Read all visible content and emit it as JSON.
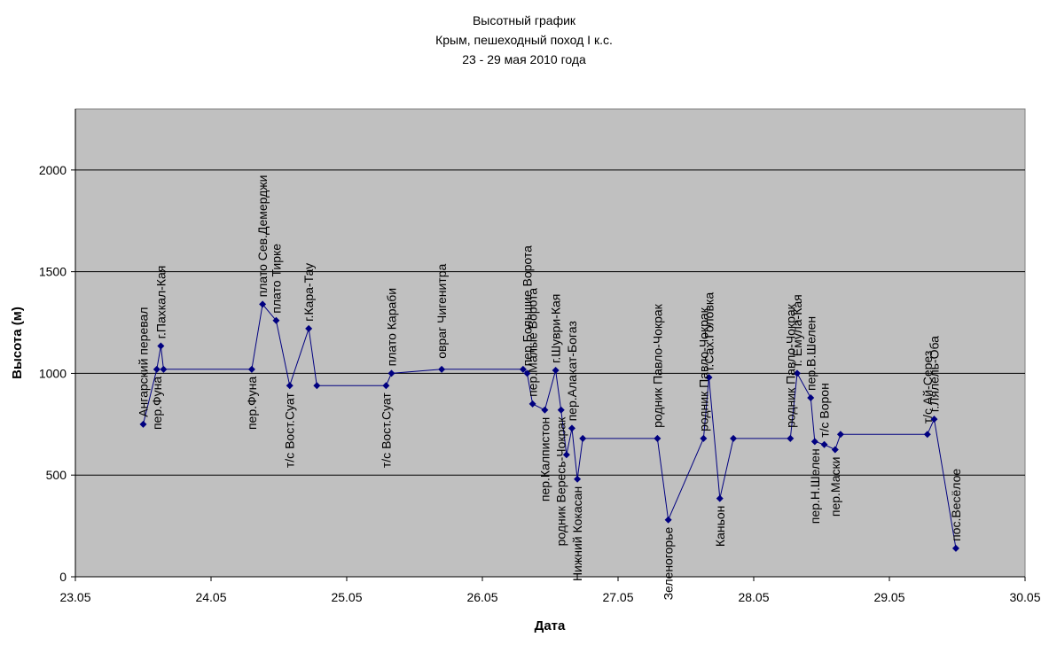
{
  "chart_data": {
    "type": "line",
    "title": [
      "Высотный график",
      "Крым, пешеходный поход I к.с.",
      "23 - 29 мая 2010 года"
    ],
    "xlabel": "Дата",
    "ylabel": "Высота (м)",
    "xlim": [
      23.0,
      30.0
    ],
    "ylim": [
      0,
      2300
    ],
    "x_ticks": [
      "23.05",
      "24.05",
      "25.05",
      "26.05",
      "27.05",
      "28.05",
      "29.05",
      "30.05"
    ],
    "y_ticks": [
      "0",
      "500",
      "1000",
      "1500",
      "2000"
    ],
    "grid": "horizontal",
    "colors": {
      "plot_bg": "#c0c0c0",
      "line": "#000080",
      "grid": "#000000"
    },
    "points": [
      {
        "x": 23.5,
        "y": 750,
        "label": "Ангарский перевал",
        "pos": "above"
      },
      {
        "x": 23.6,
        "y": 1020,
        "label": "пер.Фуна",
        "pos": "below"
      },
      {
        "x": 23.63,
        "y": 1135,
        "label": "г.Пахкал-Кая",
        "pos": "above"
      },
      {
        "x": 23.65,
        "y": 1020,
        "label": "",
        "pos": "above"
      },
      {
        "x": 24.3,
        "y": 1020,
        "label": "пер.Фуна",
        "pos": "below"
      },
      {
        "x": 24.38,
        "y": 1340,
        "label": "плато Сев.Демерджи",
        "pos": "above"
      },
      {
        "x": 24.48,
        "y": 1260,
        "label": "плато Тирке",
        "pos": "above"
      },
      {
        "x": 24.58,
        "y": 940,
        "label": "т/с Вост.Суат",
        "pos": "below"
      },
      {
        "x": 24.72,
        "y": 1220,
        "label": "г.Кара-Тау",
        "pos": "above"
      },
      {
        "x": 24.78,
        "y": 940,
        "label": "",
        "pos": "above"
      },
      {
        "x": 25.29,
        "y": 940,
        "label": "т/с Вост.Суат",
        "pos": "below"
      },
      {
        "x": 25.33,
        "y": 1000,
        "label": "плато Караби",
        "pos": "above"
      },
      {
        "x": 25.7,
        "y": 1020,
        "label": "овраг Чигенитра",
        "pos": "above_far"
      },
      {
        "x": 26.3,
        "y": 1020,
        "label": "",
        "pos": "above"
      },
      {
        "x": 26.33,
        "y": 1000,
        "label": "пер.Большие Ворота",
        "pos": "above"
      },
      {
        "x": 26.37,
        "y": 850,
        "label": "пер.Малые Ворота",
        "pos": "above"
      },
      {
        "x": 26.46,
        "y": 820,
        "label": "пер.Калпистон",
        "pos": "below"
      },
      {
        "x": 26.54,
        "y": 1015,
        "label": "г.Шуври-Кая",
        "pos": "above"
      },
      {
        "x": 26.58,
        "y": 820,
        "label": "родник Вересь-Чокрак",
        "pos": "below"
      },
      {
        "x": 26.62,
        "y": 600,
        "label": "",
        "pos": "above"
      },
      {
        "x": 26.66,
        "y": 730,
        "label": "пер.Алакат-Богаз",
        "pos": "above"
      },
      {
        "x": 26.7,
        "y": 480,
        "label": "Нижний Кокасан",
        "pos": "below"
      },
      {
        "x": 26.74,
        "y": 680,
        "label": "",
        "pos": "above"
      },
      {
        "x": 27.29,
        "y": 680,
        "label": "родник Павло-Чокрак",
        "pos": "above_far"
      },
      {
        "x": 27.37,
        "y": 280,
        "label": "Зеленогорье",
        "pos": "below"
      },
      {
        "x": 27.63,
        "y": 680,
        "label": "родник Павло-Чокрак",
        "pos": "above"
      },
      {
        "x": 27.67,
        "y": 980,
        "label": "г.Сах.Головка",
        "pos": "above"
      },
      {
        "x": 27.75,
        "y": 385,
        "label": "Каньон",
        "pos": "below"
      },
      {
        "x": 27.85,
        "y": 680,
        "label": "",
        "pos": "above"
      },
      {
        "x": 28.27,
        "y": 680,
        "label": "родник Павло-Чокрак",
        "pos": "above_far"
      },
      {
        "x": 28.32,
        "y": 1000,
        "label": "г. Емула-Кая",
        "pos": "above"
      },
      {
        "x": 28.42,
        "y": 880,
        "label": "пер.В.Шелен",
        "pos": "above"
      },
      {
        "x": 28.45,
        "y": 665,
        "label": "пер.Н.Шелен",
        "pos": "below"
      },
      {
        "x": 28.52,
        "y": 650,
        "label": "т/с Ворон",
        "pos": "above"
      },
      {
        "x": 28.6,
        "y": 625,
        "label": "пер.Маски",
        "pos": "below"
      },
      {
        "x": 28.64,
        "y": 700,
        "label": "",
        "pos": "above"
      },
      {
        "x": 29.28,
        "y": 700,
        "label": "т/с Ай-Серез",
        "pos": "above_far"
      },
      {
        "x": 29.33,
        "y": 775,
        "label": "г.Лялель-Оба",
        "pos": "above"
      },
      {
        "x": 29.49,
        "y": 140,
        "label": "пос.Весёлое",
        "pos": "above"
      }
    ]
  }
}
